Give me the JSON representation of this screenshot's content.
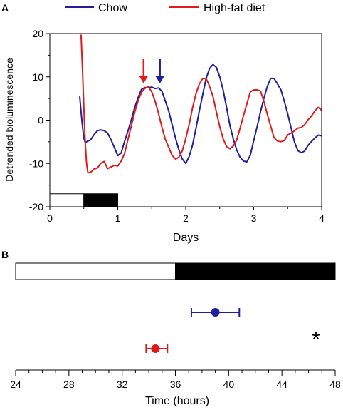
{
  "figure": {
    "panel_a_label": "A",
    "panel_b_label": "B",
    "significance_marker": "*"
  },
  "chart_data": [
    {
      "type": "line",
      "xlabel": "Days",
      "ylabel": "Detrended bioluminescence",
      "xlim": [
        0,
        4
      ],
      "ylim": [
        -20,
        20
      ],
      "xticks": [
        "0",
        "1",
        "2",
        "3",
        "4"
      ],
      "yticks": [
        "-20",
        "-10",
        "0",
        "10",
        "20"
      ],
      "legend": {
        "placement": "top",
        "entries": [
          "Chow",
          "High-fat diet"
        ]
      },
      "light_dark_bar": {
        "light": [
          0,
          0.5
        ],
        "dark": [
          0.5,
          1.0
        ],
        "y_range": [
          -20,
          -17
        ]
      },
      "series": [
        {
          "name": "Chow",
          "color": "#1f1f9e",
          "x": [
            0.44,
            0.46,
            0.48,
            0.5,
            0.52,
            0.55,
            0.6,
            0.65,
            0.7,
            0.75,
            0.8,
            0.85,
            0.9,
            0.95,
            1.0,
            1.05,
            1.1,
            1.15,
            1.2,
            1.25,
            1.3,
            1.35,
            1.4,
            1.45,
            1.5,
            1.55,
            1.6,
            1.65,
            1.7,
            1.75,
            1.8,
            1.85,
            1.9,
            1.95,
            2.0,
            2.05,
            2.1,
            2.15,
            2.2,
            2.25,
            2.3,
            2.35,
            2.4,
            2.45,
            2.5,
            2.55,
            2.6,
            2.65,
            2.7,
            2.75,
            2.8,
            2.85,
            2.9,
            2.95,
            3.0,
            3.05,
            3.1,
            3.15,
            3.2,
            3.25,
            3.3,
            3.35,
            3.4,
            3.45,
            3.5,
            3.55,
            3.6,
            3.65,
            3.7,
            3.75,
            3.8,
            3.85,
            3.9,
            3.95,
            4.0
          ],
          "y": [
            5.5,
            2,
            -1.5,
            -4,
            -5,
            -5,
            -4.5,
            -3.5,
            -2.5,
            -2,
            -2.5,
            -3,
            -4.5,
            -6.5,
            -8,
            -7.5,
            -5,
            -2.5,
            0,
            3,
            5.5,
            7,
            7.5,
            7.5,
            7.5,
            7.5,
            7.5,
            6.5,
            4.5,
            2,
            -1,
            -4,
            -7,
            -9,
            -10,
            -8.5,
            -5.5,
            -2,
            2,
            6,
            9.5,
            12,
            13,
            12,
            10,
            7,
            3,
            -1,
            -4.5,
            -7,
            -8.5,
            -9.5,
            -9.5,
            -8,
            -5,
            -1.5,
            2,
            5,
            8,
            9.5,
            9.5,
            8.5,
            7,
            4.5,
            1.5,
            -2,
            -5,
            -7,
            -7.5,
            -7,
            -6,
            -5,
            -4,
            -3.5,
            -3.5
          ]
        },
        {
          "name": "High-fat diet",
          "color": "#e01b1b",
          "x": [
            0.46,
            0.48,
            0.5,
            0.52,
            0.54,
            0.56,
            0.6,
            0.65,
            0.7,
            0.75,
            0.8,
            0.85,
            0.9,
            0.95,
            1.0,
            1.05,
            1.1,
            1.15,
            1.2,
            1.25,
            1.3,
            1.35,
            1.4,
            1.45,
            1.5,
            1.55,
            1.6,
            1.65,
            1.7,
            1.75,
            1.8,
            1.85,
            1.9,
            1.95,
            2.0,
            2.05,
            2.1,
            2.15,
            2.2,
            2.25,
            2.3,
            2.35,
            2.4,
            2.45,
            2.5,
            2.55,
            2.6,
            2.65,
            2.7,
            2.75,
            2.8,
            2.85,
            2.9,
            2.95,
            3.0,
            3.05,
            3.1,
            3.15,
            3.2,
            3.25,
            3.3,
            3.35,
            3.4,
            3.45,
            3.5,
            3.55,
            3.6,
            3.65,
            3.7,
            3.75,
            3.8,
            3.85,
            3.9,
            3.95,
            4.0
          ],
          "y": [
            20,
            12,
            3,
            -5,
            -10,
            -12,
            -12,
            -11.5,
            -11,
            -10,
            -9.5,
            -11,
            -11,
            -10.5,
            -10.5,
            -9.5,
            -7.5,
            -4.5,
            -1.5,
            2,
            4.5,
            6.5,
            7.5,
            7.5,
            6.5,
            4.5,
            1.5,
            -1.5,
            -4.5,
            -6.5,
            -8,
            -9,
            -8.5,
            -7,
            -4.5,
            -1,
            3,
            6,
            8.5,
            9.5,
            9.5,
            8,
            5.5,
            2,
            -1.5,
            -4.5,
            -6,
            -6.5,
            -6,
            -4.5,
            -2,
            1,
            4,
            6.5,
            7,
            7,
            6.5,
            4.5,
            1.5,
            -1.5,
            -4,
            -5,
            -5,
            -4.5,
            -3.5,
            -3,
            -2.5,
            -2,
            -1.5,
            -1,
            0,
            1,
            2,
            3,
            2.5
          ]
        }
      ],
      "annotations": [
        {
          "type": "arrow",
          "color": "#e01b1b",
          "x": 1.38,
          "points_to_y": 7.5
        },
        {
          "type": "arrow",
          "color": "#1f1f9e",
          "x": 1.62,
          "points_to_y": 7.5
        }
      ]
    },
    {
      "type": "scatter",
      "xlabel": "Time (hours)",
      "xlim": [
        24,
        48
      ],
      "xticks": [
        "24",
        "28",
        "32",
        "36",
        "40",
        "44",
        "48"
      ],
      "light_dark_bar": {
        "light": [
          24,
          36
        ],
        "dark": [
          36,
          48
        ]
      },
      "series": [
        {
          "name": "Chow",
          "color": "#1f1f9e",
          "x": 39.0,
          "xerr": [
            37.2,
            40.8
          ]
        },
        {
          "name": "High-fat diet",
          "color": "#e01b1b",
          "x": 34.5,
          "xerr": [
            33.8,
            35.4
          ]
        }
      ]
    }
  ]
}
